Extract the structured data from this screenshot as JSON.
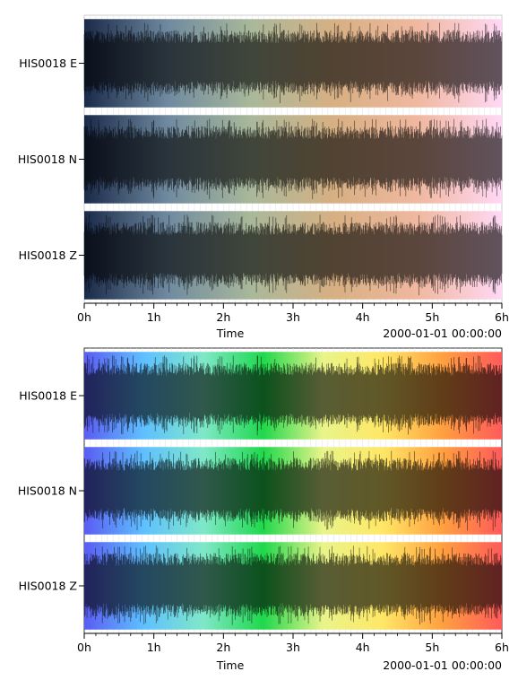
{
  "chart_data": [
    {
      "type": "line",
      "title": "",
      "xlabel": "Time",
      "ylabel": "",
      "x_tick_labels": [
        "0h",
        "1h",
        "2h",
        "3h",
        "4h",
        "5h",
        "6h"
      ],
      "xlim_hours": [
        0,
        6
      ],
      "start_time": "2000-01-01 00:00:00",
      "grid": true,
      "background_colormap": [
        "#1a2a4a",
        "#6f8aa0",
        "#a9b89a",
        "#d7b083",
        "#f0b8a0",
        "#ffd8f5"
      ],
      "traces": [
        {
          "name": "HIS0018 E"
        },
        {
          "name": "HIS0018 N"
        },
        {
          "name": "HIS0018 Z"
        }
      ]
    },
    {
      "type": "line",
      "title": "",
      "xlabel": "Time",
      "ylabel": "",
      "x_tick_labels": [
        "0h",
        "1h",
        "2h",
        "3h",
        "4h",
        "5h",
        "6h"
      ],
      "xlim_hours": [
        0,
        6
      ],
      "start_time": "2000-01-01 00:00:00",
      "grid": true,
      "background_colormap": [
        "#5a5cf2",
        "#5fc0ff",
        "#7fe8c8",
        "#1fd84c",
        "#e9f48a",
        "#ffe766",
        "#ffa040",
        "#ff5a5a"
      ],
      "traces": [
        {
          "name": "HIS0018 E"
        },
        {
          "name": "HIS0018 N"
        },
        {
          "name": "HIS0018 Z"
        }
      ]
    }
  ]
}
